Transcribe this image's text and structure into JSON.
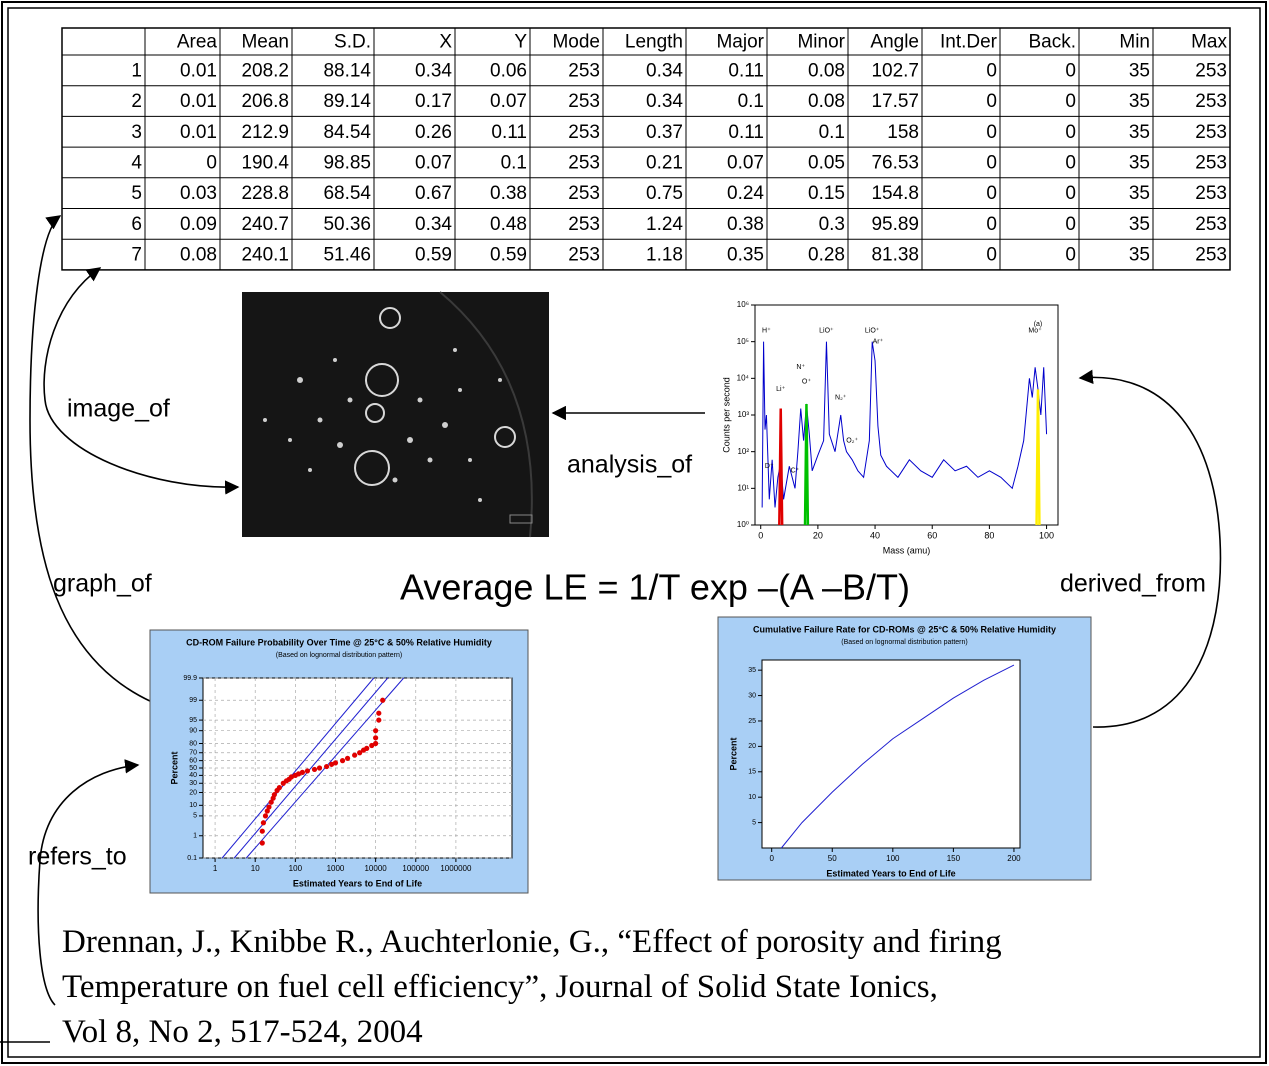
{
  "table": {
    "columns": [
      "Area",
      "Mean",
      "S.D.",
      "X",
      "Y",
      "Mode",
      "Length",
      "Major",
      "Minor",
      "Angle",
      "Int.Der",
      "Back.",
      "Min",
      "Max"
    ],
    "rows": [
      [
        1,
        0.01,
        208.2,
        88.14,
        0.34,
        0.06,
        253,
        0.34,
        0.11,
        0.08,
        102.7,
        0,
        0,
        35,
        253
      ],
      [
        2,
        0.01,
        206.8,
        89.14,
        0.17,
        0.07,
        253,
        0.34,
        0.1,
        0.08,
        17.57,
        0,
        0,
        35,
        253
      ],
      [
        3,
        0.01,
        212.9,
        84.54,
        0.26,
        0.11,
        253,
        0.37,
        0.11,
        0.1,
        158,
        0,
        0,
        35,
        253
      ],
      [
        4,
        0,
        190.4,
        98.85,
        0.07,
        0.1,
        253,
        0.21,
        0.07,
        0.05,
        76.53,
        0,
        0,
        35,
        253
      ],
      [
        5,
        0.03,
        228.8,
        68.54,
        0.67,
        0.38,
        253,
        0.75,
        0.24,
        0.15,
        154.8,
        0,
        0,
        35,
        253
      ],
      [
        6,
        0.09,
        240.7,
        50.36,
        0.34,
        0.48,
        253,
        1.24,
        0.38,
        0.3,
        95.89,
        0,
        0,
        35,
        253
      ],
      [
        7,
        0.08,
        240.1,
        51.46,
        0.59,
        0.59,
        253,
        1.18,
        0.35,
        0.28,
        81.38,
        0,
        0,
        35,
        253
      ]
    ]
  },
  "relations": {
    "image_of": "image_of",
    "analysis_of": "analysis_of",
    "graph_of": "graph_of",
    "derived_from": "derived_from",
    "refers_to": "refers_to"
  },
  "equation": "Average LE =  1/T exp  –(A –B/T)",
  "citation": [
    "Drennan, J., Knibbe R., Auchterlonie, G., “Effect of porosity and firing",
    "Temperature on fuel cell efficiency”, Journal of Solid State Ionics,",
    "Vol 8, No 2, 517-524, 2004"
  ],
  "chart_data": [
    {
      "type": "line",
      "xlabel": "Mass (amu)",
      "ylabel": "Counts per second",
      "xlim": [
        -2,
        104
      ],
      "xticks": [
        0,
        20,
        40,
        60,
        80,
        100
      ],
      "ylim": [
        1,
        1000000
      ],
      "yscale": "log",
      "yticks": [
        {
          "value": 1,
          "label": "10⁰"
        },
        {
          "value": 10,
          "label": "10¹"
        },
        {
          "value": 100,
          "label": "10²"
        },
        {
          "value": 1000,
          "label": "10³"
        },
        {
          "value": 10000,
          "label": "10⁴"
        },
        {
          "value": 100000,
          "label": "10⁵"
        },
        {
          "value": 1000000,
          "label": "10⁶"
        }
      ],
      "series": [
        {
          "color": "#0000cc",
          "x": [
            0.5,
            1,
            1.5,
            2,
            3,
            4,
            5,
            6,
            7,
            8,
            10,
            12,
            13,
            14,
            15,
            16,
            17,
            18,
            20,
            22,
            23,
            24,
            26,
            28,
            29,
            30,
            32,
            34,
            36,
            38,
            39,
            40,
            41,
            42,
            44,
            48,
            52,
            56,
            60,
            64,
            68,
            72,
            76,
            80,
            84,
            88,
            90,
            92,
            94,
            95,
            96,
            97,
            98,
            99,
            100
          ],
          "values": [
            3,
            100000,
            400,
            1000,
            5,
            60,
            3,
            20,
            50,
            5,
            40,
            10,
            100,
            1500,
            200,
            2000,
            300,
            30,
            80,
            200,
            100000,
            300,
            100,
            1000,
            200,
            100,
            60,
            30,
            20,
            200,
            100000,
            30000,
            500,
            80,
            40,
            20,
            60,
            30,
            20,
            60,
            30,
            40,
            20,
            30,
            20,
            10,
            40,
            200,
            10000,
            3000,
            20000,
            5000,
            1000,
            20000,
            300
          ]
        },
        {
          "color": "#e00000",
          "x": [
            6.5,
            7,
            7.5
          ],
          "values": [
            1,
            1500,
            1
          ]
        },
        {
          "color": "#00c000",
          "x": [
            15.5,
            16,
            16.5
          ],
          "values": [
            1,
            2000,
            1
          ]
        },
        {
          "color": "#ffee00",
          "x": [
            96.5,
            97,
            97.5
          ],
          "values": [
            1,
            5000,
            1
          ]
        }
      ],
      "annotations": [
        {
          "text": "(a)",
          "x": 97,
          "y": 300000
        },
        {
          "text": "H⁺",
          "x": 2,
          "y": 200000
        },
        {
          "text": "Li⁺",
          "x": 7,
          "y": 5000
        },
        {
          "text": "D⁺",
          "x": 3,
          "y": 40
        },
        {
          "text": "C⁺",
          "x": 12,
          "y": 30
        },
        {
          "text": "N⁺",
          "x": 14,
          "y": 20000
        },
        {
          "text": "O⁺",
          "x": 16,
          "y": 8000
        },
        {
          "text": "LiO⁺",
          "x": 23,
          "y": 200000
        },
        {
          "text": "N₂⁺",
          "x": 28,
          "y": 3000
        },
        {
          "text": "O₂⁺",
          "x": 32,
          "y": 200
        },
        {
          "text": "LiO⁺",
          "x": 39,
          "y": 200000
        },
        {
          "text": "Ar⁺",
          "x": 41,
          "y": 100000
        },
        {
          "text": "Mo⁺",
          "x": 96,
          "y": 200000
        }
      ]
    },
    {
      "type": "scatter",
      "title": "CD-ROM Failure Probability Over Time @ 25°C & 50% Relative Humidity",
      "subtitle": "(Based on lognormal distribution pattern)",
      "xlabel": "Estimated Years to End of Life",
      "ylabel": "Percent",
      "xlim": [
        0.5,
        25000000
      ],
      "xscale": "log",
      "xticks": [
        1,
        10,
        100,
        1000,
        10000,
        100000,
        1000000
      ],
      "ylim": [
        0.1,
        99.9
      ],
      "yscale": "probability",
      "yticks": [
        0.1,
        1,
        5,
        10,
        20,
        30,
        40,
        50,
        60,
        70,
        80,
        90,
        95,
        99,
        99.9
      ],
      "grid": true,
      "series": [
        {
          "color": "#2020d0",
          "x": [
            3,
            20000
          ],
          "values": [
            0.1,
            99.9
          ]
        },
        {
          "color": "#2020d0",
          "x": [
            1.5,
            9000
          ],
          "values": [
            0.1,
            99.9
          ]
        },
        {
          "color": "#2020d0",
          "x": [
            6,
            50000
          ],
          "values": [
            0.1,
            99.9
          ]
        }
      ],
      "points": {
        "color": "#e00000",
        "x": [
          15,
          15,
          16,
          18,
          20,
          22,
          25,
          28,
          30,
          35,
          40,
          50,
          60,
          70,
          80,
          100,
          120,
          150,
          200,
          300,
          400,
          600,
          800,
          1000,
          1500,
          2000,
          3000,
          4000,
          5000,
          6000,
          8000,
          10000,
          10000,
          10000,
          12000,
          12000,
          15000
        ],
        "values": [
          0.5,
          1.5,
          3,
          5,
          7,
          9,
          12,
          15,
          18,
          22,
          25,
          30,
          33,
          35,
          38,
          40,
          42,
          44,
          46,
          48,
          50,
          52,
          55,
          57,
          60,
          63,
          67,
          70,
          73,
          75,
          78,
          80,
          85,
          90,
          95,
          97,
          99
        ]
      }
    },
    {
      "type": "line",
      "title": "Cumulative Failure Rate for CD-ROMs @ 25°C & 50% Relative Humidity",
      "subtitle": "(Based on lognormal distribution pattern)",
      "xlabel": "Estimated Years to End of Life",
      "ylabel": "Percent",
      "xlim": [
        -8,
        205
      ],
      "xticks": [
        0,
        50,
        100,
        150,
        200
      ],
      "ylim": [
        0,
        37
      ],
      "yticks": [
        5,
        10,
        15,
        20,
        25,
        30,
        35
      ],
      "series": [
        {
          "color": "#2020d0",
          "x": [
            8,
            25,
            50,
            75,
            100,
            125,
            150,
            175,
            200
          ],
          "values": [
            0,
            5,
            11,
            16.5,
            21.5,
            25.5,
            29.5,
            33,
            36
          ]
        }
      ]
    }
  ]
}
